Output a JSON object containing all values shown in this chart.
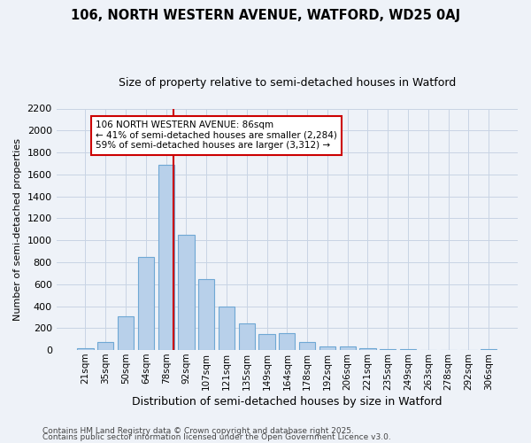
{
  "title_line1": "106, NORTH WESTERN AVENUE, WATFORD, WD25 0AJ",
  "title_line2": "Size of property relative to semi-detached houses in Watford",
  "xlabel": "Distribution of semi-detached houses by size in Watford",
  "ylabel": "Number of semi-detached properties",
  "categories": [
    "21sqm",
    "35sqm",
    "50sqm",
    "64sqm",
    "78sqm",
    "92sqm",
    "107sqm",
    "121sqm",
    "135sqm",
    "149sqm",
    "164sqm",
    "178sqm",
    "192sqm",
    "206sqm",
    "221sqm",
    "235sqm",
    "249sqm",
    "263sqm",
    "278sqm",
    "292sqm",
    "306sqm"
  ],
  "values": [
    15,
    70,
    310,
    850,
    1690,
    1050,
    650,
    400,
    245,
    150,
    155,
    75,
    35,
    30,
    20,
    12,
    8,
    5,
    4,
    2,
    8
  ],
  "bar_color": "#b8d0ea",
  "bar_edge_color": "#6fa8d4",
  "vline_color": "#cc0000",
  "vline_x": 4.35,
  "annotation_title": "106 NORTH WESTERN AVENUE: 86sqm",
  "annotation_line1": "← 41% of semi-detached houses are smaller (2,284)",
  "annotation_line2": "59% of semi-detached houses are larger (3,312) →",
  "annotation_box_color": "#cc0000",
  "ylim": [
    0,
    2200
  ],
  "yticks": [
    0,
    200,
    400,
    600,
    800,
    1000,
    1200,
    1400,
    1600,
    1800,
    2000,
    2200
  ],
  "footnote1": "Contains HM Land Registry data © Crown copyright and database right 2025.",
  "footnote2": "Contains public sector information licensed under the Open Government Licence v3.0.",
  "bg_color": "#eef2f8",
  "plot_bg_color": "#eef2f8",
  "grid_color": "#c8d4e4"
}
